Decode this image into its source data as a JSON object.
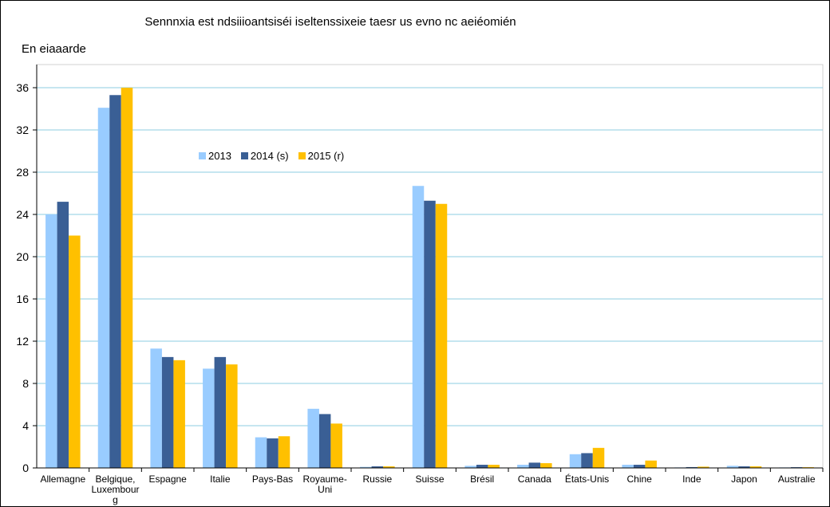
{
  "chart_data": {
    "type": "bar",
    "title": "Sennnxia est ndsiiioantsiséi iseltenssixeie taesr us evno nc aeiéomién",
    "ylabel": "En eiaaarde",
    "xlabel": "",
    "ylim": [
      0,
      36
    ],
    "yticks": [
      0,
      4,
      8,
      12,
      16,
      20,
      24,
      28,
      32,
      36
    ],
    "grid": true,
    "legend_position": "top-left",
    "categories": [
      [
        "Allemagne"
      ],
      [
        "Belgique,",
        "Luxembour",
        "g"
      ],
      [
        "Espagne"
      ],
      [
        "Italie"
      ],
      [
        "Pays-Bas"
      ],
      [
        "Royaume-",
        "Uni"
      ],
      [
        "Russie"
      ],
      [
        "Suisse"
      ],
      [
        "Brésil"
      ],
      [
        "Canada"
      ],
      [
        "États-Unis"
      ],
      [
        "Chine"
      ],
      [
        "Inde"
      ],
      [
        "Japon"
      ],
      [
        "Australie"
      ]
    ],
    "series": [
      {
        "name": "2013",
        "color": "#99ccff",
        "values": [
          24.0,
          34.1,
          11.3,
          9.4,
          2.9,
          5.6,
          0.1,
          26.7,
          0.2,
          0.3,
          1.3,
          0.3,
          0.05,
          0.2,
          0.05
        ]
      },
      {
        "name": "2014 (s)",
        "color": "#3a5f95",
        "values": [
          25.2,
          35.3,
          10.5,
          10.5,
          2.8,
          5.1,
          0.15,
          25.3,
          0.3,
          0.5,
          1.4,
          0.3,
          0.08,
          0.15,
          0.07
        ]
      },
      {
        "name": "2015 (r)",
        "color": "#ffc000",
        "values": [
          22.0,
          36.0,
          10.2,
          9.8,
          3.0,
          4.2,
          0.15,
          25.0,
          0.3,
          0.45,
          1.9,
          0.7,
          0.12,
          0.15,
          0.07
        ]
      }
    ]
  }
}
